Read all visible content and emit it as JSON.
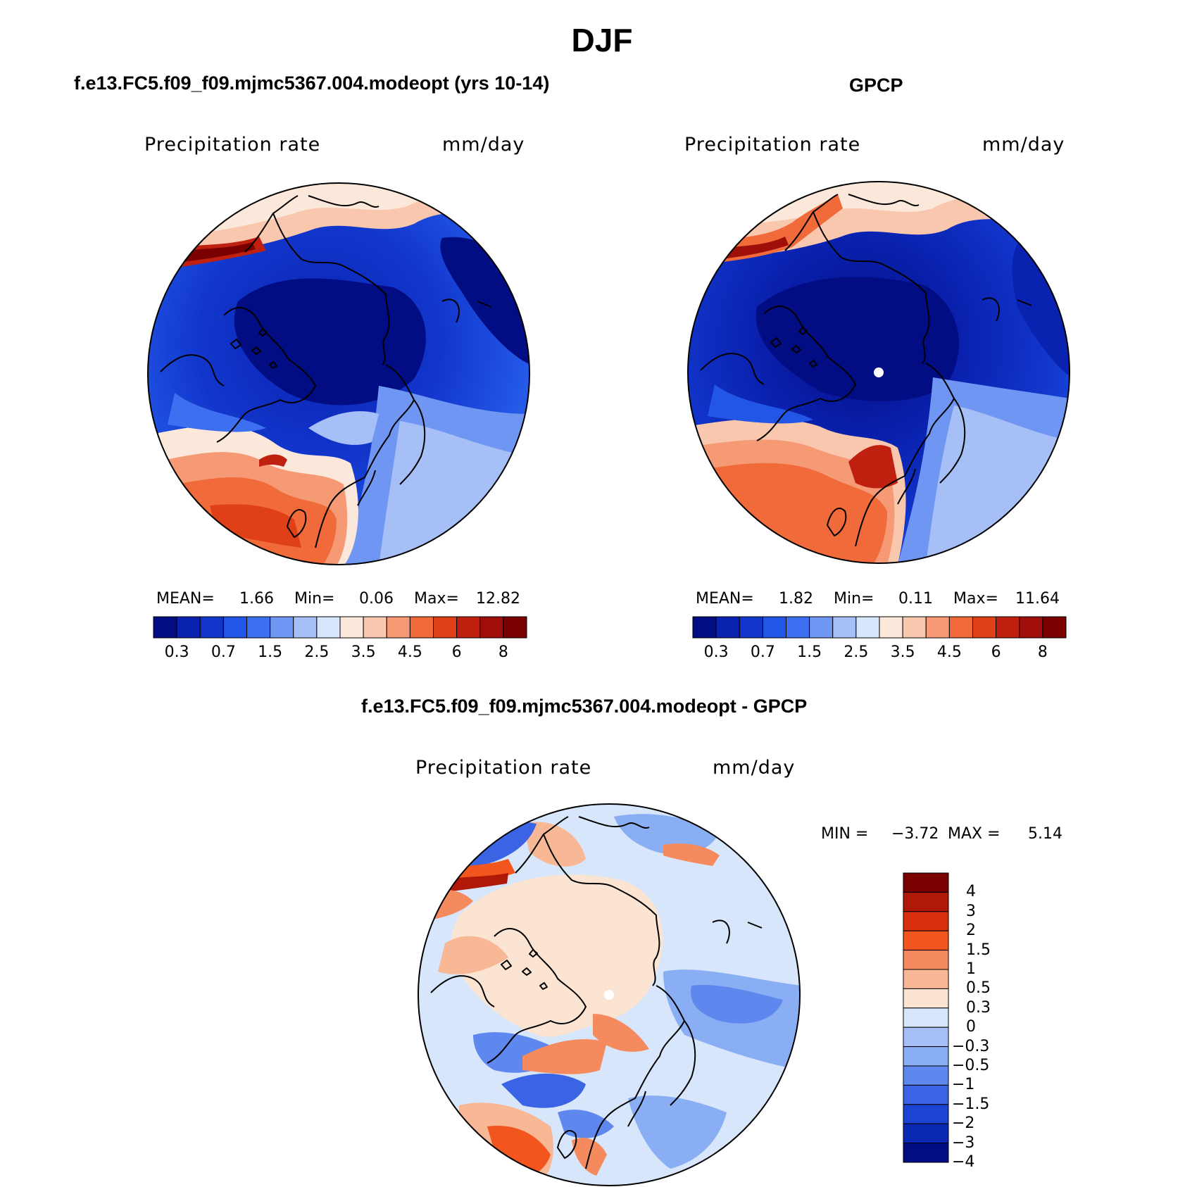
{
  "figure": {
    "season": "DJF"
  },
  "colors": {
    "abs_scale": [
      "#020C83",
      "#0A22B0",
      "#1236CC",
      "#2256E6",
      "#3D70F0",
      "#6F96F2",
      "#A6C0F7",
      "#D7E6FA",
      "#FCE8DA",
      "#F8C7AE",
      "#F59A74",
      "#F06A3A",
      "#E04018",
      "#C02010",
      "#A00E0A",
      "#7A0000"
    ],
    "diff_scale": [
      "#7A0000",
      "#B01808",
      "#D83010",
      "#F2561E",
      "#F58A5E",
      "#F8B896",
      "#FCE4D2",
      "#D7E6FA",
      "#A6C0F7",
      "#8AAEF3",
      "#5E88EE",
      "#3A64E4",
      "#1C44D2",
      "#0A28B4",
      "#020C83"
    ],
    "coast": "#000000"
  },
  "panels": [
    {
      "id": "model",
      "title": "f.e13.FC5.f09_f09.mjmc5367.004.modeopt (yrs 10-14)",
      "variable": "Precipitation rate",
      "units": "mm/day",
      "stats": {
        "mean_label": "MEAN=",
        "mean": "1.66",
        "min_label": "Min=",
        "min": "0.06",
        "max_label": "Max=",
        "max": "12.82"
      },
      "colorbar_labels": [
        "0.3",
        "0.7",
        "1.5",
        "2.5",
        "3.5",
        "4.5",
        "6",
        "8"
      ]
    },
    {
      "id": "obs",
      "title": "GPCP",
      "variable": "Precipitation rate",
      "units": "mm/day",
      "stats": {
        "mean_label": "MEAN=",
        "mean": "1.82",
        "min_label": "Min=",
        "min": "0.11",
        "max_label": "Max=",
        "max": "11.64"
      },
      "colorbar_labels": [
        "0.3",
        "0.7",
        "1.5",
        "2.5",
        "3.5",
        "4.5",
        "6",
        "8"
      ]
    },
    {
      "id": "diff",
      "title": "f.e13.FC5.f09_f09.mjmc5367.004.modeopt - GPCP",
      "variable": "Precipitation rate",
      "units": "mm/day",
      "stats": {
        "min_label": "MIN =",
        "min": "−3.72",
        "max_label": "MAX =",
        "max": "5.14"
      },
      "colorbar_labels": [
        "4",
        "3",
        "2",
        "1.5",
        "1",
        "0.5",
        "0.3",
        "0",
        "−0.3",
        "−0.5",
        "−1",
        "−1.5",
        "−2",
        "−3",
        "−4"
      ]
    }
  ]
}
